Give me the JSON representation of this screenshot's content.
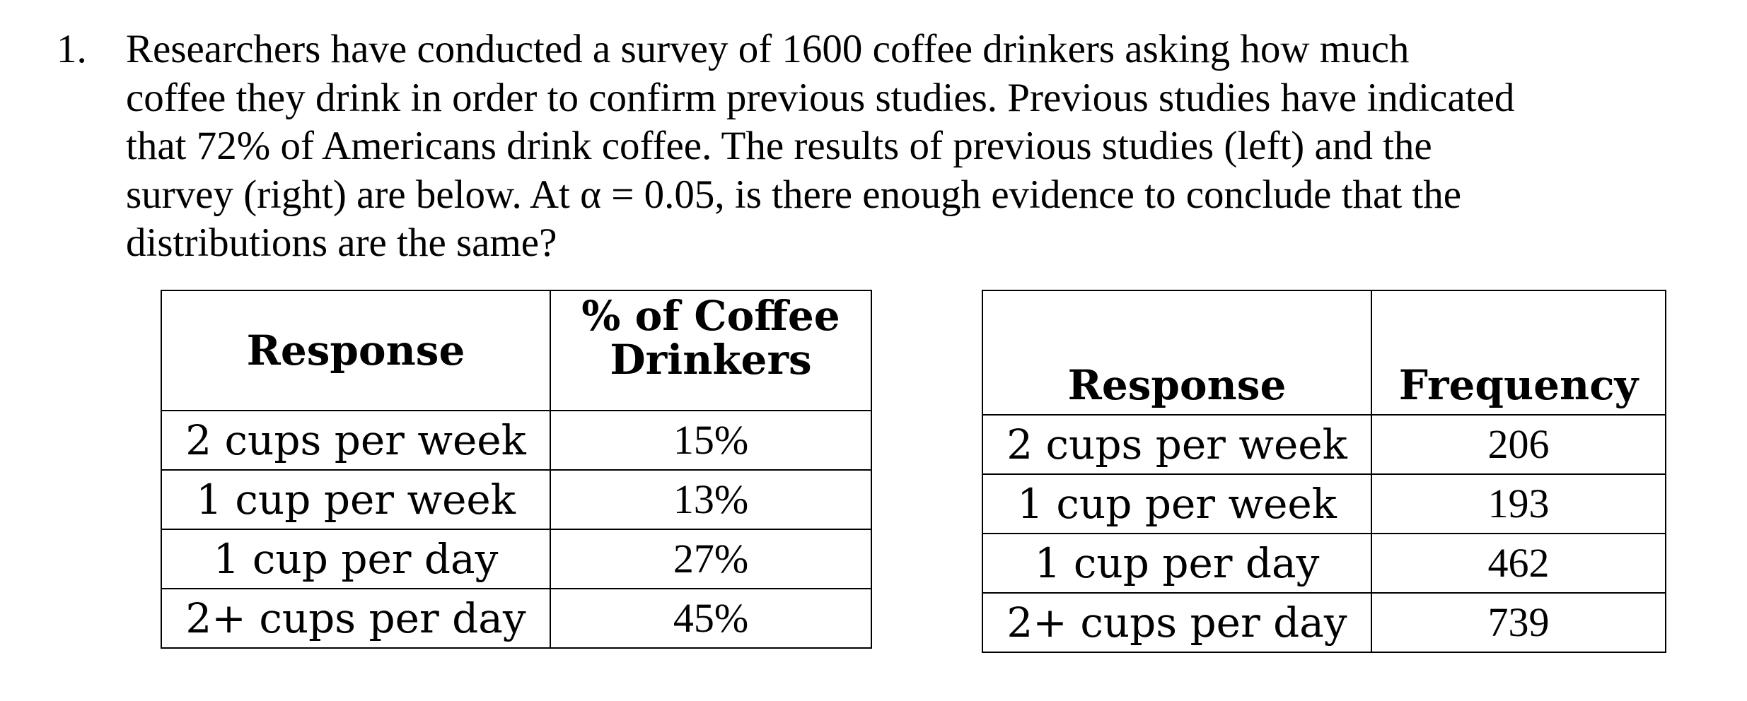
{
  "question": {
    "number": "1.",
    "lines": [
      "Researchers have conducted a survey of 1600 coffee drinkers asking how much",
      "coffee they drink in order to confirm previous studies. Previous studies have indicated",
      "that 72% of Americans drink coffee. The results of previous studies (left) and the",
      "survey (right) are below. At α = 0.05, is there enough evidence to conclude that the",
      "distributions are the same?"
    ]
  },
  "previous_table": {
    "headers": {
      "response": "Response",
      "percent_line1": "% of Coffee",
      "percent_line2": "Drinkers"
    },
    "rows": [
      {
        "response": "2 cups per week",
        "value": "15%"
      },
      {
        "response": "1 cup per week",
        "value": "13%"
      },
      {
        "response": "1 cup per day",
        "value": "27%"
      },
      {
        "response": "2+ cups per day",
        "value": "45%"
      }
    ]
  },
  "survey_table": {
    "headers": {
      "response": "Response",
      "frequency": "Frequency"
    },
    "rows": [
      {
        "response": "2 cups per week",
        "value": "206"
      },
      {
        "response": "1 cup per week",
        "value": "193"
      },
      {
        "response": "1 cup per day",
        "value": "462"
      },
      {
        "response": "2+ cups per day",
        "value": "739"
      }
    ]
  }
}
